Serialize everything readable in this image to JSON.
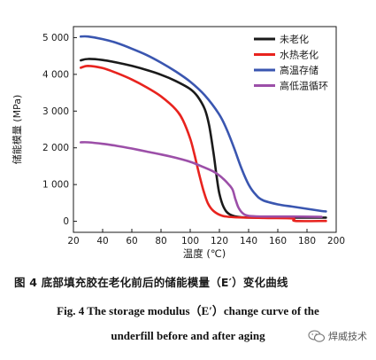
{
  "chart_data": {
    "type": "line",
    "title": "",
    "xlabel": "温度 (℃)",
    "ylabel": "储能模量 (MPa)",
    "xlim": [
      20,
      200
    ],
    "ylim": [
      -300,
      5300
    ],
    "xticks": [
      20,
      40,
      60,
      80,
      100,
      120,
      140,
      160,
      180,
      200
    ],
    "yticks": [
      0,
      1000,
      2000,
      3000,
      4000,
      5000
    ],
    "ytick_labels": [
      "0",
      "1 000",
      "2 000",
      "3 000",
      "4 000",
      "5 000"
    ],
    "grid": false,
    "legend_position": "top-right",
    "series": [
      {
        "name": "未老化",
        "color": "#1a1a1a",
        "points": [
          [
            25,
            4380
          ],
          [
            30,
            4420
          ],
          [
            40,
            4390
          ],
          [
            50,
            4320
          ],
          [
            60,
            4230
          ],
          [
            70,
            4120
          ],
          [
            80,
            3990
          ],
          [
            90,
            3820
          ],
          [
            100,
            3600
          ],
          [
            105,
            3400
          ],
          [
            110,
            3050
          ],
          [
            113,
            2600
          ],
          [
            116,
            1850
          ],
          [
            118,
            1250
          ],
          [
            120,
            750
          ],
          [
            123,
            380
          ],
          [
            127,
            190
          ],
          [
            135,
            110
          ],
          [
            150,
            100
          ],
          [
            170,
            100
          ],
          [
            193,
            100
          ]
        ]
      },
      {
        "name": "水热老化",
        "color": "#e8231e",
        "points": [
          [
            25,
            4180
          ],
          [
            30,
            4230
          ],
          [
            40,
            4170
          ],
          [
            50,
            4030
          ],
          [
            60,
            3860
          ],
          [
            70,
            3650
          ],
          [
            80,
            3400
          ],
          [
            90,
            3050
          ],
          [
            95,
            2750
          ],
          [
            100,
            2250
          ],
          [
            103,
            1800
          ],
          [
            106,
            1300
          ],
          [
            109,
            850
          ],
          [
            112,
            500
          ],
          [
            116,
            280
          ],
          [
            122,
            150
          ],
          [
            130,
            110
          ],
          [
            150,
            90
          ],
          [
            170,
            80
          ],
          [
            172,
            10
          ],
          [
            193,
            10
          ]
        ]
      },
      {
        "name": "高温存储",
        "color": "#3a56b0",
        "points": [
          [
            25,
            5030
          ],
          [
            30,
            5030
          ],
          [
            40,
            4960
          ],
          [
            50,
            4850
          ],
          [
            60,
            4700
          ],
          [
            70,
            4530
          ],
          [
            80,
            4320
          ],
          [
            90,
            4080
          ],
          [
            100,
            3800
          ],
          [
            110,
            3430
          ],
          [
            120,
            2900
          ],
          [
            125,
            2500
          ],
          [
            130,
            2000
          ],
          [
            135,
            1450
          ],
          [
            140,
            1000
          ],
          [
            145,
            720
          ],
          [
            150,
            570
          ],
          [
            160,
            460
          ],
          [
            170,
            400
          ],
          [
            180,
            340
          ],
          [
            190,
            280
          ],
          [
            193,
            270
          ]
        ]
      },
      {
        "name": "高低温循环",
        "color": "#9c4fa8",
        "points": [
          [
            25,
            2150
          ],
          [
            30,
            2150
          ],
          [
            40,
            2110
          ],
          [
            50,
            2050
          ],
          [
            60,
            1980
          ],
          [
            70,
            1900
          ],
          [
            80,
            1820
          ],
          [
            90,
            1730
          ],
          [
            100,
            1620
          ],
          [
            110,
            1460
          ],
          [
            117,
            1330
          ],
          [
            122,
            1180
          ],
          [
            126,
            1020
          ],
          [
            129,
            860
          ],
          [
            131,
            600
          ],
          [
            133,
            380
          ],
          [
            136,
            220
          ],
          [
            140,
            150
          ],
          [
            150,
            130
          ],
          [
            170,
            130
          ],
          [
            190,
            120
          ]
        ]
      }
    ]
  },
  "caption": {
    "cn": "图 4   底部填充胶在老化前后的储能模量（E′）变化曲线",
    "en_line1": "Fig. 4   The storage modulus（E′）change curve of the",
    "en_line2": "underfill before and after aging"
  },
  "watermark": {
    "text": "焊威技术",
    "icon": "wechat-icon"
  }
}
